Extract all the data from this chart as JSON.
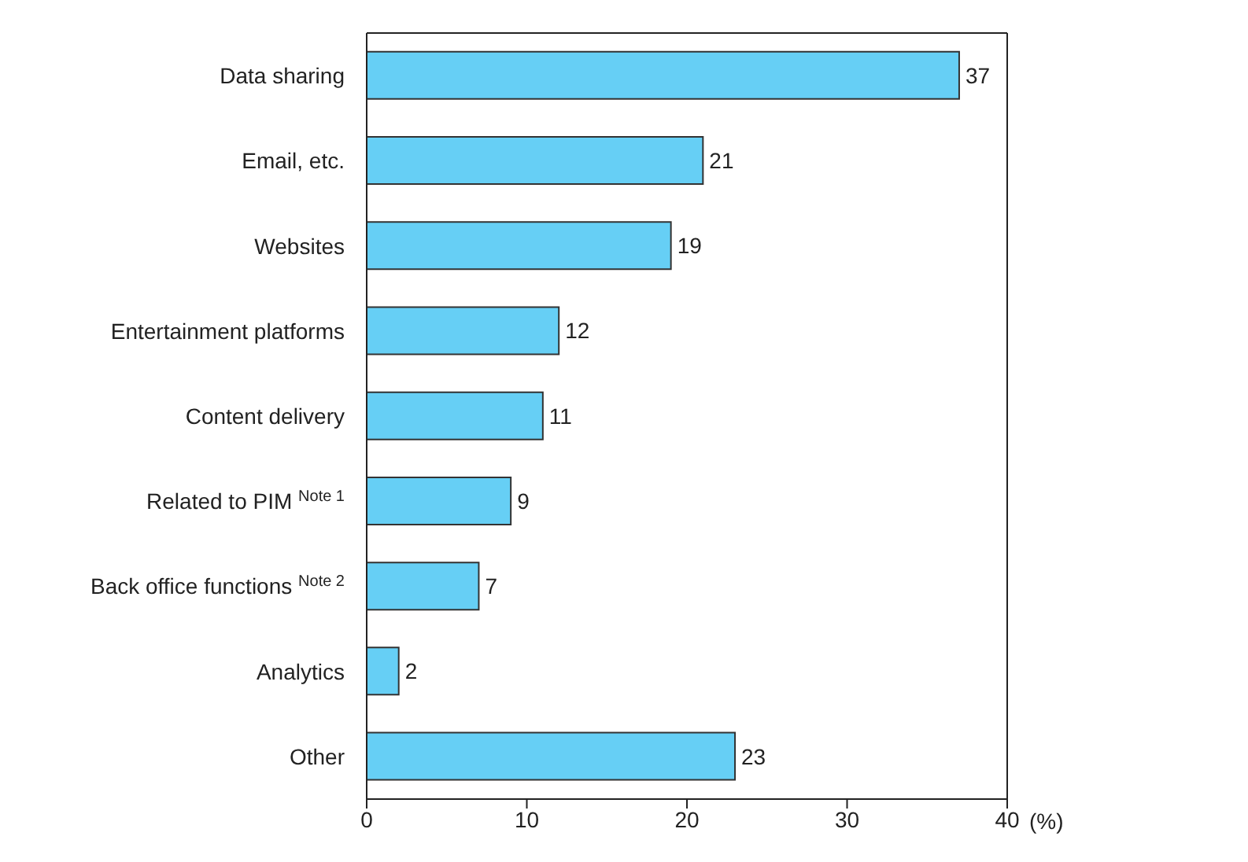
{
  "chart_data": {
    "type": "bar",
    "orientation": "horizontal",
    "categories": [
      "Data sharing",
      "Email, etc.",
      "Websites",
      "Entertainment platforms",
      "Content delivery",
      "Related to PIM $^{Note 1}$",
      "Back office functions $^{Note 2}$",
      "Analytics",
      "Other"
    ],
    "values": [
      37,
      21,
      19,
      12,
      11,
      9,
      7,
      2,
      23
    ],
    "color": "#66cff5",
    "xlabel": "(%)",
    "xlim": [
      0,
      40
    ],
    "xticks": [
      0,
      10,
      20,
      30,
      40
    ],
    "data_labels": true
  }
}
